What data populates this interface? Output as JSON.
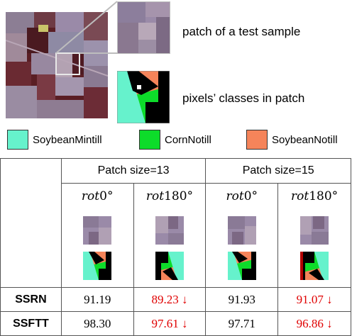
{
  "top": {
    "patch_label": "patch of a test sample",
    "classes_label": "pixels’ classes in patch"
  },
  "legend": [
    {
      "label": "SoybeanMintill",
      "color": "#66f2cc"
    },
    {
      "label": "CornNotill",
      "color": "#0ddc2a"
    },
    {
      "label": "SoybeanNotill",
      "color": "#f5845a"
    }
  ],
  "table": {
    "groups": [
      "Patch size=13",
      "Patch size=15"
    ],
    "rotations": [
      "rot",
      "rot",
      "rot",
      "rot"
    ],
    "rotation_degrees": [
      "0°",
      "180°",
      "0°",
      "180°"
    ],
    "rows": [
      {
        "model": "SSRN",
        "values": [
          "91.19",
          "89.23 ↓",
          "91.93",
          "91.07 ↓"
        ],
        "drop": [
          false,
          true,
          false,
          true
        ]
      },
      {
        "model": "SSFTT",
        "values": [
          "98.30",
          "97.61 ↓",
          "97.71",
          "96.86 ↓"
        ],
        "drop": [
          false,
          true,
          false,
          true
        ]
      }
    ]
  },
  "colors": {
    "black": "#000000",
    "decline_red": "#e00000",
    "satellite_dark": "#5a1e24",
    "satellite_light": "#9a8aa8"
  }
}
